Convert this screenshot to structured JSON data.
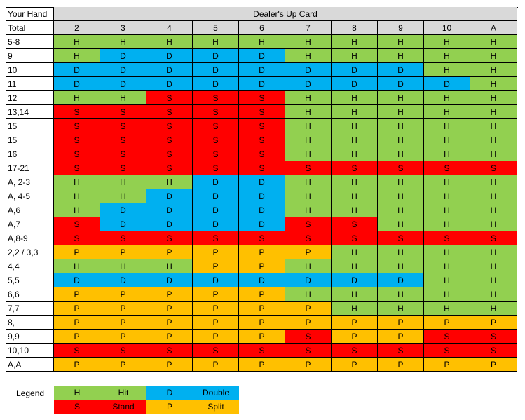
{
  "header": {
    "hand_title": "Your Hand",
    "hand_subtitle": "Total",
    "dealer_title": "Dealer's Up Card",
    "dealer_cards": [
      "2",
      "3",
      "4",
      "5",
      "6",
      "7",
      "8",
      "9",
      "10",
      "A"
    ]
  },
  "rows": [
    {
      "label": "5-8",
      "cells": [
        "H",
        "H",
        "H",
        "H",
        "H",
        "H",
        "H",
        "H",
        "H",
        "H"
      ]
    },
    {
      "label": "9",
      "cells": [
        "H",
        "D",
        "D",
        "D",
        "D",
        "H",
        "H",
        "H",
        "H",
        "H"
      ]
    },
    {
      "label": "10",
      "cells": [
        "D",
        "D",
        "D",
        "D",
        "D",
        "D",
        "D",
        "D",
        "H",
        "H"
      ]
    },
    {
      "label": "11",
      "cells": [
        "D",
        "D",
        "D",
        "D",
        "D",
        "D",
        "D",
        "D",
        "D",
        "H"
      ]
    },
    {
      "label": "12",
      "cells": [
        "H",
        "H",
        "S",
        "S",
        "S",
        "H",
        "H",
        "H",
        "H",
        "H"
      ]
    },
    {
      "label": "13,14",
      "cells": [
        "S",
        "S",
        "S",
        "S",
        "S",
        "H",
        "H",
        "H",
        "H",
        "H"
      ]
    },
    {
      "label": "15",
      "cells": [
        "S",
        "S",
        "S",
        "S",
        "S",
        "H",
        "H",
        "H",
        "H",
        "H"
      ]
    },
    {
      "label": "15",
      "cells": [
        "S",
        "S",
        "S",
        "S",
        "S",
        "H",
        "H",
        "H",
        "H",
        "H"
      ]
    },
    {
      "label": "16",
      "cells": [
        "S",
        "S",
        "S",
        "S",
        "S",
        "H",
        "H",
        "H",
        "H",
        "H"
      ]
    },
    {
      "label": "17-21",
      "cells": [
        "S",
        "S",
        "S",
        "S",
        "S",
        "S",
        "S",
        "S",
        "S",
        "S"
      ]
    },
    {
      "label": "A, 2-3",
      "cells": [
        "H",
        "H",
        "H",
        "D",
        "D",
        "H",
        "H",
        "H",
        "H",
        "H"
      ]
    },
    {
      "label": "A, 4-5",
      "cells": [
        "H",
        "H",
        "D",
        "D",
        "D",
        "H",
        "H",
        "H",
        "H",
        "H"
      ]
    },
    {
      "label": "A,6",
      "cells": [
        "H",
        "D",
        "D",
        "D",
        "D",
        "H",
        "H",
        "H",
        "H",
        "H"
      ]
    },
    {
      "label": "A,7",
      "cells": [
        "S",
        "D",
        "D",
        "D",
        "D",
        "S",
        "S",
        "H",
        "H",
        "H"
      ]
    },
    {
      "label": "A,8-9",
      "cells": [
        "S",
        "S",
        "S",
        "S",
        "S",
        "S",
        "S",
        "S",
        "S",
        "S"
      ]
    },
    {
      "label": "2,2 / 3,3",
      "cells": [
        "P",
        "P",
        "P",
        "P",
        "P",
        "P",
        "H",
        "H",
        "H",
        "H"
      ]
    },
    {
      "label": "4,4",
      "cells": [
        "H",
        "H",
        "H",
        "P",
        "P",
        "H",
        "H",
        "H",
        "H",
        "H"
      ]
    },
    {
      "label": "5,5",
      "cells": [
        "D",
        "D",
        "D",
        "D",
        "D",
        "D",
        "D",
        "D",
        "H",
        "H"
      ]
    },
    {
      "label": "6,6",
      "cells": [
        "P",
        "P",
        "P",
        "P",
        "P",
        "H",
        "H",
        "H",
        "H",
        "H"
      ]
    },
    {
      "label": "7,7",
      "cells": [
        "P",
        "P",
        "P",
        "P",
        "P",
        "P",
        "H",
        "H",
        "H",
        "H"
      ]
    },
    {
      "label": "8,",
      "cells": [
        "P",
        "P",
        "P",
        "P",
        "P",
        "P",
        "P",
        "P",
        "P",
        "P"
      ]
    },
    {
      "label": "9,9",
      "cells": [
        "P",
        "P",
        "P",
        "P",
        "P",
        "S",
        "P",
        "P",
        "S",
        "S"
      ]
    },
    {
      "label": "10,10",
      "cells": [
        "S",
        "S",
        "S",
        "S",
        "S",
        "S",
        "S",
        "S",
        "S",
        "S"
      ]
    },
    {
      "label": "A,A",
      "cells": [
        "P",
        "P",
        "P",
        "P",
        "P",
        "P",
        "P",
        "P",
        "P",
        "P"
      ]
    }
  ],
  "legend": {
    "title": "Legend",
    "items": [
      {
        "code": "H",
        "name": "Hit",
        "color": "#92d050"
      },
      {
        "code": "D",
        "name": "Double",
        "color": "#00b0f0"
      },
      {
        "code": "S",
        "name": "Stand",
        "color": "#ff0000"
      },
      {
        "code": "P",
        "name": "Split",
        "color": "#ffc000"
      }
    ]
  }
}
